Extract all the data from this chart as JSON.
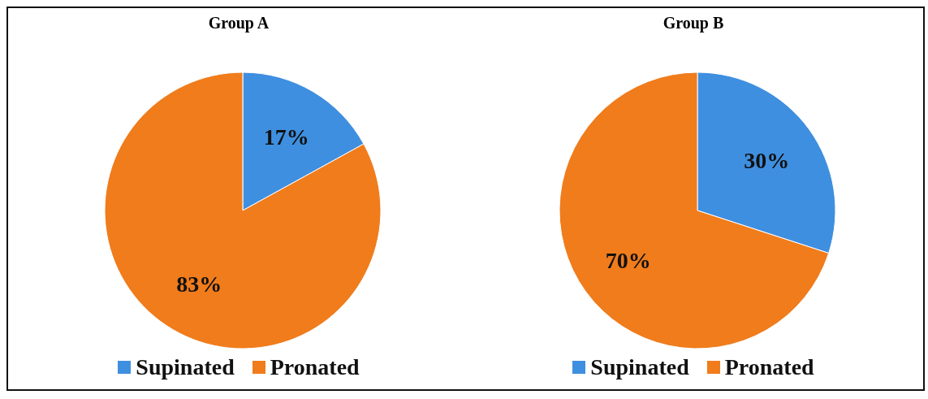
{
  "chart_data": [
    {
      "type": "pie",
      "title": "Group A",
      "categories": [
        "Supinated",
        "Pronated"
      ],
      "values": [
        17,
        83
      ],
      "value_labels": [
        "17%",
        "83%"
      ],
      "colors": [
        "#3f8fe0",
        "#f07c1c"
      ],
      "legend": "bottom"
    },
    {
      "type": "pie",
      "title": "Group B",
      "categories": [
        "Supinated",
        "Pronated"
      ],
      "values": [
        30,
        70
      ],
      "value_labels": [
        "30%",
        "70%"
      ],
      "colors": [
        "#3f8fe0",
        "#f07c1c"
      ],
      "legend": "bottom"
    }
  ]
}
